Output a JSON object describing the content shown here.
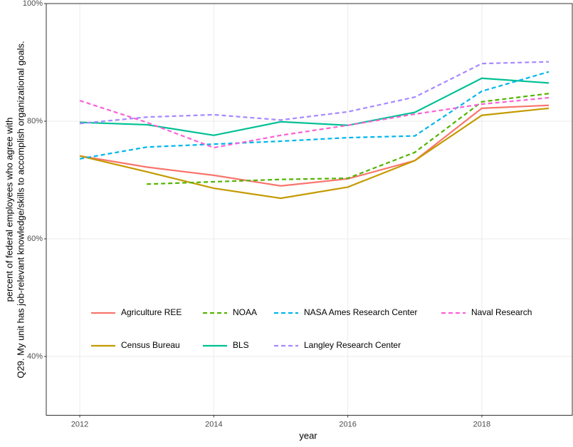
{
  "chart_data": {
    "type": "line",
    "xlabel": "year",
    "ylabel": [
      "percent of federal employees who agree with",
      "Q29. My unit has job-relevant knowledge/skills to accomplish organizational goals."
    ],
    "x": [
      2012,
      2013,
      2014,
      2015,
      2016,
      2017,
      2018,
      2019
    ],
    "xlim": [
      2011.5,
      2019.35
    ],
    "xticks": [
      2012,
      2014,
      2016,
      2018
    ],
    "ylim": [
      30,
      100
    ],
    "yticks": [
      {
        "value": 40,
        "label": "40%"
      },
      {
        "value": 60,
        "label": "60%"
      },
      {
        "value": 80,
        "label": "80%"
      },
      {
        "value": 100,
        "label": "100%"
      }
    ],
    "grid": true,
    "series": [
      {
        "name": "Agriculture REE",
        "color": "#F8766D",
        "dashed": false,
        "values": [
          74.1,
          72.2,
          70.8,
          69.0,
          70.2,
          73.3,
          82.2,
          82.7
        ]
      },
      {
        "name": "Census Bureau",
        "color": "#C49A00",
        "dashed": false,
        "values": [
          74.1,
          71.4,
          68.6,
          66.9,
          68.8,
          73.3,
          81.0,
          82.2
        ]
      },
      {
        "name": "NOAA",
        "color": "#53B400",
        "dashed": true,
        "values": [
          null,
          69.3,
          69.7,
          70.1,
          70.3,
          74.7,
          83.3,
          84.7
        ]
      },
      {
        "name": "BLS",
        "color": "#00C094",
        "dashed": false,
        "values": [
          79.8,
          79.4,
          77.6,
          79.9,
          79.3,
          81.5,
          87.3,
          86.5
        ]
      },
      {
        "name": "NASA Ames Research Center",
        "color": "#00B6EB",
        "dashed": true,
        "values": [
          73.6,
          75.6,
          76.1,
          76.6,
          77.2,
          77.5,
          85.1,
          88.4
        ]
      },
      {
        "name": "Langley Research Center",
        "color": "#A58AFF",
        "dashed": true,
        "values": [
          79.6,
          80.7,
          81.1,
          80.2,
          81.6,
          84.1,
          89.8,
          90.1
        ]
      },
      {
        "name": "Naval Research",
        "color": "#FB61D7",
        "dashed": true,
        "values": [
          83.5,
          79.8,
          75.5,
          77.6,
          79.3,
          81.2,
          82.9,
          84.0
        ]
      }
    ]
  }
}
